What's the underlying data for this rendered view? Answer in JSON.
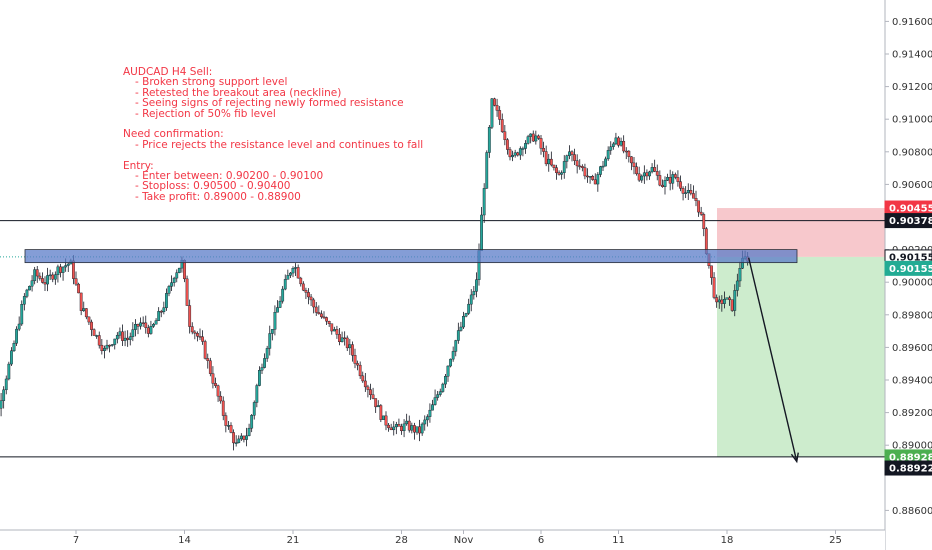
{
  "chart_data": {
    "type": "candlestick",
    "title": "",
    "instrument": "AUDCAD",
    "timeframe": "H4",
    "ylim": [
      0.885,
      0.918
    ],
    "y_ticks": [
      "0.91600",
      "0.91400",
      "0.91200",
      "0.91000",
      "0.90800",
      "0.90600",
      "0.90200",
      "0.90000",
      "0.89800",
      "0.89600",
      "0.89400",
      "0.89200",
      "0.89000",
      "0.88600"
    ],
    "x_ticks": [
      {
        "label": "7",
        "day": 7
      },
      {
        "label": "14",
        "day": 14
      },
      {
        "label": "21",
        "day": 21
      },
      {
        "label": "28",
        "day": 28
      },
      {
        "label": "Nov",
        "day": 32
      },
      {
        "label": "6",
        "day": 37
      },
      {
        "label": "11",
        "day": 42
      },
      {
        "label": "18",
        "day": 49
      },
      {
        "label": "25",
        "day": 56
      }
    ],
    "xlim_days": [
      1,
      63
    ],
    "price_path": [
      [
        1.0,
        0.8875
      ],
      [
        1.5,
        0.8868
      ],
      [
        2.2,
        0.8925
      ],
      [
        3.0,
        0.8955
      ],
      [
        3.8,
        0.899
      ],
      [
        4.5,
        0.9005
      ],
      [
        5.2,
        0.9
      ],
      [
        6.0,
        0.9008
      ],
      [
        6.8,
        0.9012
      ],
      [
        7.5,
        0.8985
      ],
      [
        8.3,
        0.897
      ],
      [
        9.0,
        0.8958
      ],
      [
        9.8,
        0.8968
      ],
      [
        10.5,
        0.8965
      ],
      [
        11.3,
        0.8975
      ],
      [
        12.0,
        0.897
      ],
      [
        12.8,
        0.8985
      ],
      [
        13.5,
        0.9005
      ],
      [
        14.0,
        0.9012
      ],
      [
        14.5,
        0.8975
      ],
      [
        15.3,
        0.8962
      ],
      [
        16.0,
        0.894
      ],
      [
        16.8,
        0.8915
      ],
      [
        17.5,
        0.89
      ],
      [
        18.3,
        0.8908
      ],
      [
        19.0,
        0.8945
      ],
      [
        19.8,
        0.8972
      ],
      [
        20.5,
        0.8995
      ],
      [
        21.2,
        0.9012
      ],
      [
        21.8,
        0.8998
      ],
      [
        22.5,
        0.8985
      ],
      [
        23.3,
        0.8975
      ],
      [
        24.0,
        0.8968
      ],
      [
        24.8,
        0.896
      ],
      [
        25.5,
        0.8945
      ],
      [
        26.3,
        0.893
      ],
      [
        27.0,
        0.8915
      ],
      [
        27.8,
        0.891
      ],
      [
        28.5,
        0.8912
      ],
      [
        29.3,
        0.8908
      ],
      [
        30.0,
        0.892
      ],
      [
        30.8,
        0.8938
      ],
      [
        31.5,
        0.896
      ],
      [
        32.3,
        0.898
      ],
      [
        33.0,
        0.9
      ],
      [
        33.5,
        0.906
      ],
      [
        34.0,
        0.911
      ],
      [
        34.5,
        0.91
      ],
      [
        35.3,
        0.9075
      ],
      [
        36.0,
        0.9085
      ],
      [
        36.8,
        0.909
      ],
      [
        37.5,
        0.9075
      ],
      [
        38.3,
        0.9065
      ],
      [
        39.0,
        0.908
      ],
      [
        39.8,
        0.907
      ],
      [
        40.5,
        0.906
      ],
      [
        41.3,
        0.9075
      ],
      [
        42.0,
        0.909
      ],
      [
        42.8,
        0.9075
      ],
      [
        43.5,
        0.9065
      ],
      [
        44.3,
        0.907
      ],
      [
        45.0,
        0.906
      ],
      [
        45.8,
        0.9065
      ],
      [
        46.5,
        0.9055
      ],
      [
        47.2,
        0.905
      ],
      [
        47.5,
        0.904
      ],
      [
        48.0,
        0.901
      ],
      [
        48.5,
        0.8985
      ],
      [
        49.0,
        0.899
      ],
      [
        49.5,
        0.8985
      ],
      [
        50.0,
        0.901
      ],
      [
        50.4,
        0.9015
      ]
    ],
    "horizontal_lines": [
      {
        "price": 0.90378,
        "color": "#131722"
      },
      {
        "price": 0.88928,
        "color": "#131722"
      }
    ],
    "support_zone": {
      "from": 0.9012,
      "to": 0.902,
      "color": "#5b7cc8"
    },
    "short_position": {
      "entry": 0.90155,
      "stop": 0.90455,
      "target": 0.88928,
      "stop_color": "#f7c8cc",
      "target_color": "#cdeccd"
    },
    "arrow": {
      "from": [
        50.4,
        0.9015
      ],
      "to": [
        53.5,
        0.889
      ]
    },
    "price_badges": [
      {
        "label": "0.90455",
        "price": 0.90455,
        "bg": "#f23645",
        "fg": "#ffffff"
      },
      {
        "label": "0.90378",
        "price": 0.90378,
        "bg": "#131722",
        "fg": "#ffffff"
      },
      {
        "label": "0.90155",
        "price": 0.90155,
        "bg": "#ffffff",
        "fg": "#131722"
      },
      {
        "label": "0.90155",
        "price": 0.90085,
        "bg": "#22ab94",
        "fg": "#ffffff"
      },
      {
        "label": "0.88928",
        "price": 0.88928,
        "bg": "#4caf50",
        "fg": "#ffffff"
      },
      {
        "label": "0.88922",
        "price": 0.8886,
        "bg": "#131722",
        "fg": "#ffffff"
      }
    ],
    "colors": {
      "up": "#26a69a",
      "down": "#ef5350",
      "wick": "#131722",
      "grid": "#ffffff"
    }
  },
  "notes": [
    {
      "text": "AUDCAD H4 Sell:",
      "indent": false
    },
    {
      "text": "- Broken strong support level",
      "indent": true
    },
    {
      "text": "- Retested the breakout area (neckline)",
      "indent": true
    },
    {
      "text": "- Seeing signs of rejecting newly formed resistance",
      "indent": true
    },
    {
      "text": "- Rejection of 50% fib level",
      "indent": true
    },
    {
      "text": "",
      "indent": false
    },
    {
      "text": "Need confirmation:",
      "indent": false
    },
    {
      "text": "- Price rejects the resistance level and continues to fall",
      "indent": true
    },
    {
      "text": "",
      "indent": false
    },
    {
      "text": "Entry:",
      "indent": false
    },
    {
      "text": "- Enter between: 0.90200 - 0.90100",
      "indent": true
    },
    {
      "text": "- Stoploss: 0.90500 - 0.90400",
      "indent": true
    },
    {
      "text": "- Take profit: 0.89000 - 0.88900",
      "indent": true
    }
  ]
}
